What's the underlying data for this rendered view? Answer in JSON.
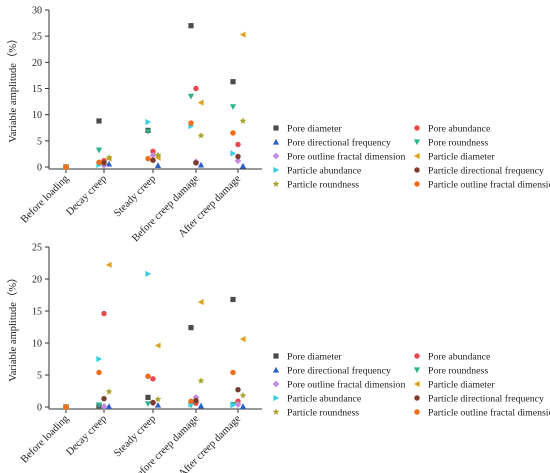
{
  "series_styles": [
    {
      "name": "Pore diameter",
      "color": "#4a4a4a",
      "marker": "square"
    },
    {
      "name": "Pore abundance",
      "color": "#e8484f",
      "marker": "circle"
    },
    {
      "name": "Pore directional frequency",
      "color": "#2b5fc7",
      "marker": "triangle-up"
    },
    {
      "name": "Pore roundness",
      "color": "#2db38a",
      "marker": "triangle-down"
    },
    {
      "name": "Pore outline fractal dimension",
      "color": "#c58be0",
      "marker": "diamond"
    },
    {
      "name": "Particle diameter",
      "color": "#e0a21e",
      "marker": "triangle-left"
    },
    {
      "name": "Particle abundance",
      "color": "#35cfe4",
      "marker": "triangle-right"
    },
    {
      "name": "Particle directional frequency",
      "color": "#7a3c2c",
      "marker": "circle"
    },
    {
      "name": "Particle roundness",
      "color": "#a8a12a",
      "marker": "star"
    },
    {
      "name": "Particle outline fractal dimension",
      "color": "#f26d1b",
      "marker": "circle"
    }
  ],
  "chart_data": [
    {
      "type": "scatter",
      "ylabel": "Variable amplitude（%）",
      "xlabel": "",
      "ylim": [
        0,
        30
      ],
      "yticks": [
        0,
        5,
        10,
        15,
        20,
        25,
        30
      ],
      "categories": [
        "Before loading",
        "Decay creep",
        "Steady creep",
        "Before creep damage",
        "After creep damage"
      ],
      "grid": false,
      "legend_position": "right",
      "series": [
        {
          "name": "Pore diameter",
          "values": [
            0,
            8.8,
            7.0,
            27.0,
            16.3
          ]
        },
        {
          "name": "Pore abundance",
          "values": [
            0,
            1.2,
            3.0,
            15.0,
            4.3
          ]
        },
        {
          "name": "Pore directional frequency",
          "values": [
            0,
            0.6,
            0.3,
            0.4,
            0.2
          ]
        },
        {
          "name": "Pore roundness",
          "values": [
            0,
            3.2,
            6.8,
            13.5,
            11.5
          ]
        },
        {
          "name": "Pore outline fractal dimension",
          "values": [
            0,
            0.3,
            2.2,
            1.0,
            1.2
          ]
        },
        {
          "name": "Particle diameter",
          "values": [
            0,
            1.6,
            1.8,
            12.3,
            25.3
          ]
        },
        {
          "name": "Particle abundance",
          "values": [
            0,
            0.4,
            8.6,
            7.8,
            2.6
          ]
        },
        {
          "name": "Particle directional frequency",
          "values": [
            0,
            0.8,
            1.3,
            0.8,
            2.0
          ]
        },
        {
          "name": "Particle roundness",
          "values": [
            0,
            1.8,
            2.3,
            6.0,
            8.8
          ]
        },
        {
          "name": "Particle outline fractal dimension",
          "values": [
            0,
            0.9,
            1.6,
            8.4,
            6.5
          ]
        }
      ]
    },
    {
      "type": "scatter",
      "ylabel": "Variable amplitude（%）",
      "xlabel": "",
      "ylim": [
        0,
        25
      ],
      "yticks": [
        0,
        5,
        10,
        15,
        20,
        25
      ],
      "categories": [
        "Before loading",
        "Decay creep",
        "Steady creep",
        "Before creep damage",
        "After creep damage"
      ],
      "grid": false,
      "legend_position": "right",
      "series": [
        {
          "name": "Pore diameter",
          "values": [
            0,
            0.2,
            1.5,
            12.4,
            16.8
          ]
        },
        {
          "name": "Pore abundance",
          "values": [
            0,
            14.6,
            4.4,
            0.6,
            0.9
          ]
        },
        {
          "name": "Pore directional frequency",
          "values": [
            0,
            0.1,
            0.3,
            0.2,
            0.1
          ]
        },
        {
          "name": "Pore roundness",
          "values": [
            0,
            0.3,
            0.5,
            0.3,
            0.4
          ]
        },
        {
          "name": "Pore outline fractal dimension",
          "values": [
            0,
            0.1,
            0.6,
            1.5,
            0.4
          ]
        },
        {
          "name": "Particle diameter",
          "values": [
            0,
            22.2,
            9.6,
            16.4,
            10.6
          ]
        },
        {
          "name": "Particle abundance",
          "values": [
            0,
            7.5,
            20.8,
            0.4,
            0.3
          ]
        },
        {
          "name": "Particle directional frequency",
          "values": [
            0,
            1.3,
            0.7,
            1.0,
            2.7
          ]
        },
        {
          "name": "Particle roundness",
          "values": [
            0,
            2.4,
            1.2,
            4.1,
            1.8
          ]
        },
        {
          "name": "Particle outline fractal dimension",
          "values": [
            0,
            5.4,
            4.8,
            0.9,
            5.4
          ]
        }
      ]
    }
  ]
}
